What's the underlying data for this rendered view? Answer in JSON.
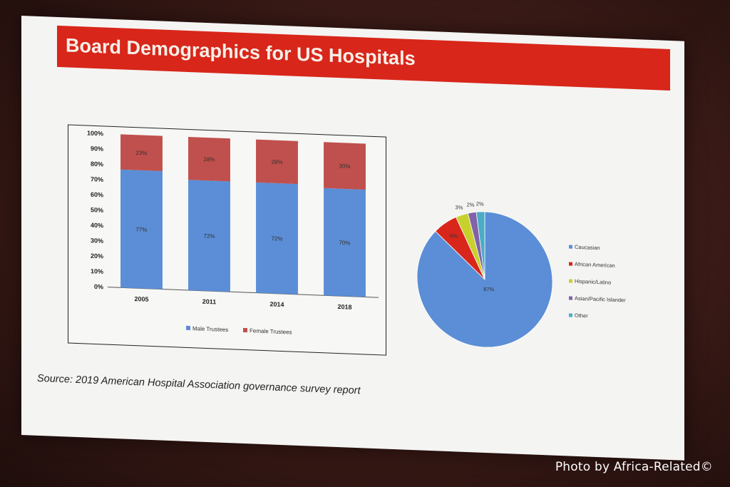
{
  "slide": {
    "title": "Board Demographics for US Hospitals",
    "source": "Source: 2019 American Hospital Association governance survey report"
  },
  "photo_credit": "Photo by Africa-Related©",
  "chart_data": [
    {
      "type": "bar",
      "stacked": true,
      "categories": [
        "2005",
        "2011",
        "2014",
        "2018"
      ],
      "series": [
        {
          "name": "Male Trustees",
          "values": [
            77,
            72,
            72,
            70
          ],
          "color": "#5b8ed6"
        },
        {
          "name": "Female Trustees",
          "values": [
            23,
            28,
            28,
            30
          ],
          "color": "#c0504d"
        }
      ],
      "ylim": [
        0,
        100
      ],
      "yticks": [
        "0%",
        "10%",
        "20%",
        "30%",
        "40%",
        "50%",
        "60%",
        "70%",
        "80%",
        "90%",
        "100%"
      ],
      "legend": "bottom"
    },
    {
      "type": "pie",
      "slices": [
        {
          "label": "Caucasian",
          "value": 87,
          "text": "87%",
          "color": "#5b8ed6"
        },
        {
          "label": "African American",
          "value": 6,
          "text": "6%",
          "color": "#d9261c"
        },
        {
          "label": "Hispanic/Latino",
          "value": 3,
          "text": "3%",
          "color": "#c8d02e"
        },
        {
          "label": "Asian/Pacific Islander",
          "value": 2,
          "text": "2%",
          "color": "#8063a8"
        },
        {
          "label": "Other",
          "value": 2,
          "text": "2%",
          "color": "#4bacc6"
        }
      ],
      "legend": "right"
    }
  ]
}
